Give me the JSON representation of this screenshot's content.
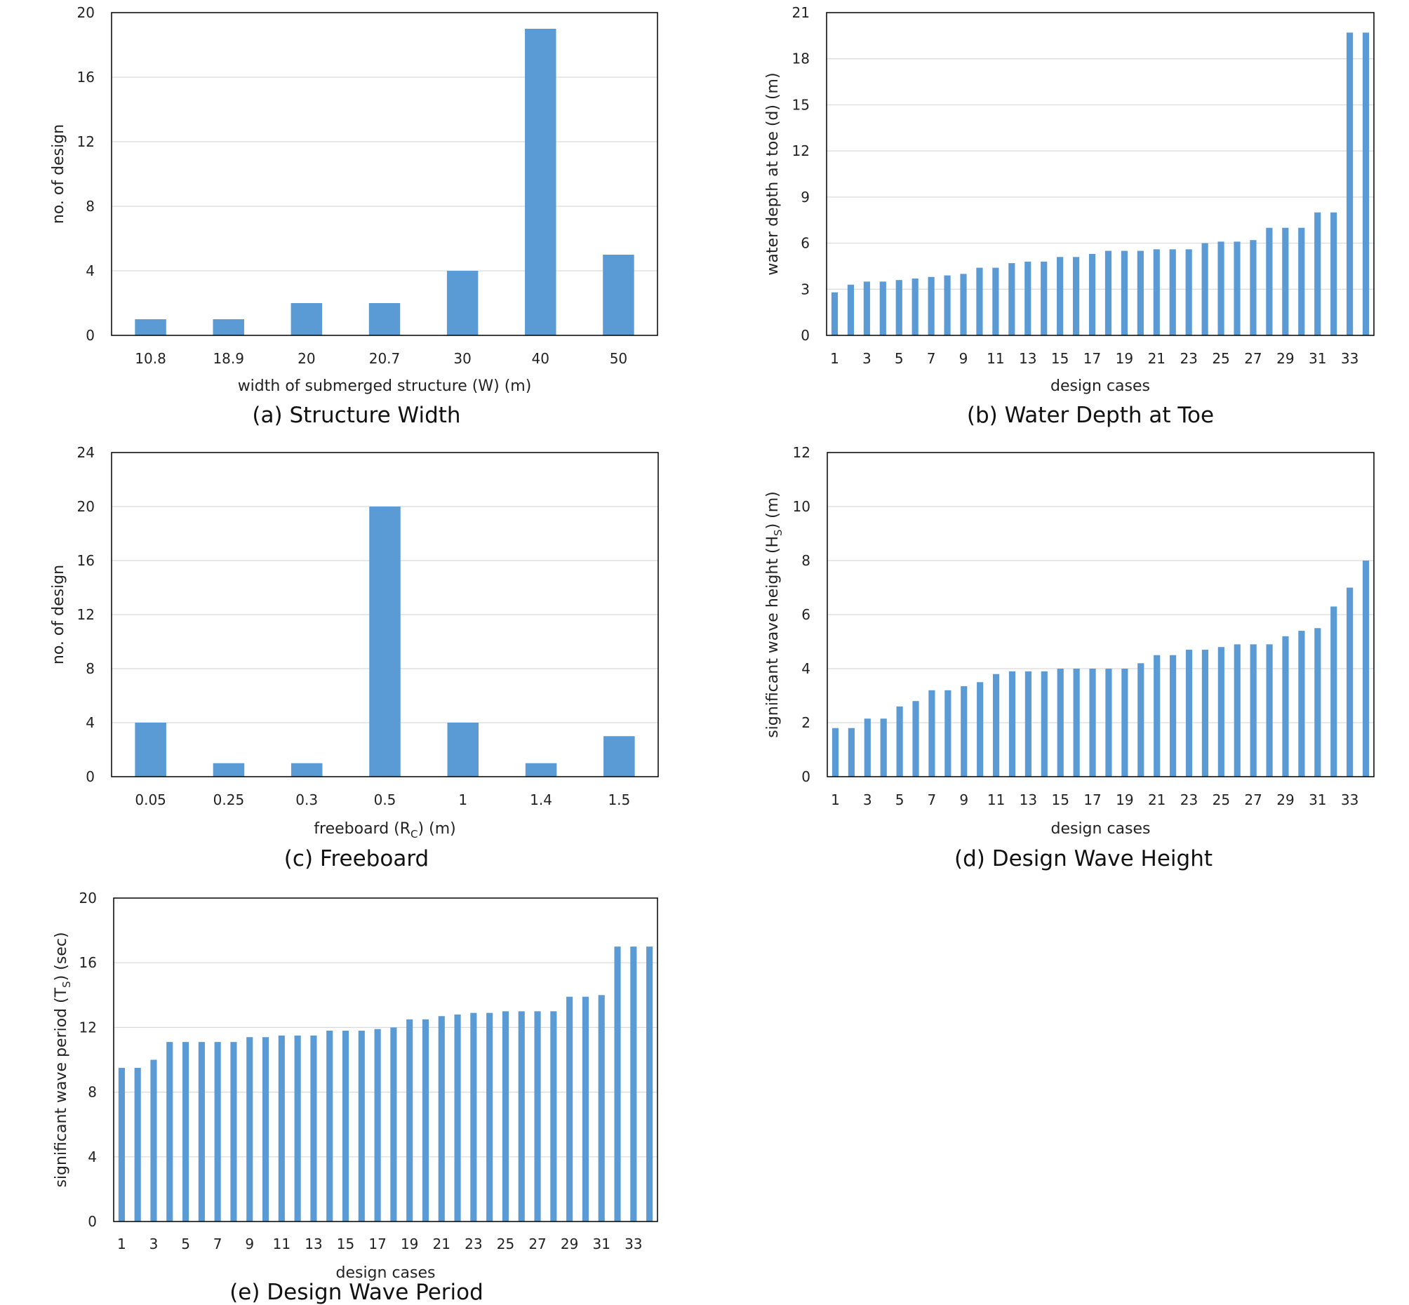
{
  "colors": {
    "bar": "#5b9bd5",
    "grid": "#d9d9d9",
    "frame": "#000000"
  },
  "chart_data": [
    {
      "id": "a",
      "type": "bar",
      "caption": "(a) Structure Width",
      "xlabel": "width of submerged structure (W) (m)",
      "ylabel": "no. of design",
      "categories": [
        "10.8",
        "18.9",
        "20",
        "20.7",
        "30",
        "40",
        "50"
      ],
      "values": [
        1,
        1,
        2,
        2,
        4,
        19,
        5
      ],
      "ylim": [
        0,
        20
      ],
      "yticks": [
        0,
        4,
        8,
        12,
        16,
        20
      ],
      "grid": true
    },
    {
      "id": "b",
      "type": "bar",
      "caption": "(b) Water Depth at Toe",
      "xlabel": "design cases",
      "ylabel": "water depth at toe (d) (m)",
      "categories": [
        "1",
        "2",
        "3",
        "4",
        "5",
        "6",
        "7",
        "8",
        "9",
        "10",
        "11",
        "12",
        "13",
        "14",
        "15",
        "16",
        "17",
        "18",
        "19",
        "20",
        "21",
        "22",
        "23",
        "24",
        "25",
        "26",
        "27",
        "28",
        "29",
        "30",
        "31",
        "32",
        "33",
        "34"
      ],
      "tick_labels": [
        "1",
        "",
        "3",
        "",
        "5",
        "",
        "7",
        "",
        "9",
        "",
        "11",
        "",
        "13",
        "",
        "15",
        "",
        "17",
        "",
        "19",
        "",
        "21",
        "",
        "23",
        "",
        "25",
        "",
        "27",
        "",
        "29",
        "",
        "31",
        "",
        "33",
        ""
      ],
      "values": [
        2.8,
        3.3,
        3.5,
        3.5,
        3.6,
        3.7,
        3.8,
        3.9,
        4.0,
        4.4,
        4.4,
        4.7,
        4.8,
        4.8,
        5.1,
        5.1,
        5.3,
        5.5,
        5.5,
        5.5,
        5.6,
        5.6,
        5.6,
        6.0,
        6.1,
        6.1,
        6.2,
        7.0,
        7.0,
        7.0,
        8.0,
        8.0,
        19.7,
        19.7
      ],
      "ylim": [
        0,
        21
      ],
      "yticks": [
        0,
        3,
        6,
        9,
        12,
        15,
        18,
        21
      ],
      "grid": true
    },
    {
      "id": "c",
      "type": "bar",
      "caption": "(c) Freeboard",
      "xlabel": "freeboard (R",
      "xlabel_sub": "C",
      "xlabel_end": ") (m)",
      "ylabel": "no. of design",
      "categories": [
        "0.05",
        "0.25",
        "0.3",
        "0.5",
        "1",
        "1.4",
        "1.5"
      ],
      "values": [
        4,
        1,
        1,
        20,
        4,
        1,
        3
      ],
      "ylim": [
        0,
        24
      ],
      "yticks": [
        0,
        4,
        8,
        12,
        16,
        20,
        24
      ],
      "grid": true
    },
    {
      "id": "d",
      "type": "bar",
      "caption": "(d) Design Wave Height",
      "xlabel": "design cases",
      "ylabel": "significant wave height (H",
      "ylabel_sub": "S",
      "ylabel_end": ") (m)",
      "categories": [
        "1",
        "2",
        "3",
        "4",
        "5",
        "6",
        "7",
        "8",
        "9",
        "10",
        "11",
        "12",
        "13",
        "14",
        "15",
        "16",
        "17",
        "18",
        "19",
        "20",
        "21",
        "22",
        "23",
        "24",
        "25",
        "26",
        "27",
        "28",
        "29",
        "30",
        "31",
        "32",
        "33",
        "34"
      ],
      "tick_labels": [
        "1",
        "",
        "3",
        "",
        "5",
        "",
        "7",
        "",
        "9",
        "",
        "11",
        "",
        "13",
        "",
        "15",
        "",
        "17",
        "",
        "19",
        "",
        "21",
        "",
        "23",
        "",
        "25",
        "",
        "27",
        "",
        "29",
        "",
        "31",
        "",
        "33",
        ""
      ],
      "values": [
        1.8,
        1.8,
        2.15,
        2.15,
        2.6,
        2.8,
        3.2,
        3.2,
        3.35,
        3.5,
        3.8,
        3.9,
        3.9,
        3.9,
        4.0,
        4.0,
        4.0,
        4.0,
        4.0,
        4.2,
        4.5,
        4.5,
        4.7,
        4.7,
        4.8,
        4.9,
        4.9,
        4.9,
        5.2,
        5.4,
        5.5,
        6.3,
        7.0,
        8.0
      ],
      "ylim": [
        0,
        12
      ],
      "yticks": [
        0,
        2,
        4,
        6,
        8,
        10,
        12
      ],
      "grid": true
    },
    {
      "id": "e",
      "type": "bar",
      "caption": "(e) Design Wave Period",
      "xlabel": "design cases",
      "ylabel": "significant wave period (T",
      "ylabel_sub": "S",
      "ylabel_end": ") (sec)",
      "categories": [
        "1",
        "2",
        "3",
        "4",
        "5",
        "6",
        "7",
        "8",
        "9",
        "10",
        "11",
        "12",
        "13",
        "14",
        "15",
        "16",
        "17",
        "18",
        "19",
        "20",
        "21",
        "22",
        "23",
        "24",
        "25",
        "26",
        "27",
        "28",
        "29",
        "30",
        "31",
        "32",
        "33",
        "34"
      ],
      "tick_labels": [
        "1",
        "",
        "3",
        "",
        "5",
        "",
        "7",
        "",
        "9",
        "",
        "11",
        "",
        "13",
        "",
        "15",
        "",
        "17",
        "",
        "19",
        "",
        "21",
        "",
        "23",
        "",
        "25",
        "",
        "27",
        "",
        "29",
        "",
        "31",
        "",
        "33",
        ""
      ],
      "values": [
        9.5,
        9.5,
        10.0,
        11.1,
        11.1,
        11.1,
        11.1,
        11.1,
        11.4,
        11.4,
        11.5,
        11.5,
        11.5,
        11.8,
        11.8,
        11.8,
        11.9,
        12.0,
        12.5,
        12.5,
        12.7,
        12.8,
        12.9,
        12.9,
        13.0,
        13.0,
        13.0,
        13.0,
        13.9,
        13.9,
        14.0,
        17.0,
        17.0,
        17.0
      ],
      "ylim": [
        0,
        20
      ],
      "yticks": [
        0,
        4,
        8,
        12,
        16,
        20
      ],
      "grid": true
    }
  ]
}
